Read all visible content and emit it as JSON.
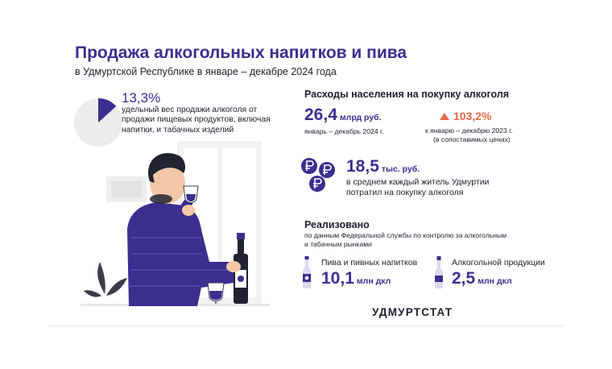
{
  "header": {
    "title": "Продажа алкогольных напитков и пива",
    "subtitle": "в Удмуртской Республике в январе – декабре 2024 года"
  },
  "share": {
    "value": "13,3%",
    "fraction": 0.133,
    "description": "удельный вес продажи алкоголя от продажи пищевых продуктов, включая напитки, и табачных изделий"
  },
  "spending": {
    "heading": "Расходы населения на покупку алкоголя",
    "total_value": "26,4",
    "total_unit": "млрд руб.",
    "total_period": "январь – декабрь 2024 г.",
    "growth_value": "103,2%",
    "growth_note_line1": "к январю – декабрю 2023 г.",
    "growth_note_line2": "(в сопоставимых ценах)",
    "per_capita_value": "18,5",
    "per_capita_unit": "тыс. руб.",
    "per_capita_text_line1": "в среднем каждый житель Удмуртии",
    "per_capita_text_line2": "потратил на покупку алкоголя"
  },
  "sold": {
    "heading": "Реализовано",
    "source_line1": "по данным Федеральной службы по контролю за алкогольным",
    "source_line2": "и табачным рынками",
    "beer_label": "Пива и пивных напитков",
    "beer_value": "10,1",
    "beer_unit": "млн дкл",
    "alcohol_label": "Алкогольной продукции",
    "alcohol_value": "2,5",
    "alcohol_unit": "млн дкл"
  },
  "brand": "УДМУРТСТАТ",
  "colors": {
    "accent": "#3a2f8f",
    "growth": "#e36b48",
    "pie_rest": "#ececec"
  },
  "icons": [
    "pie-share-icon",
    "coins-ruble-icon",
    "triangle-up-icon",
    "beer-bottle-icon",
    "vodka-bottle-icon",
    "man-drinking-illustration"
  ]
}
